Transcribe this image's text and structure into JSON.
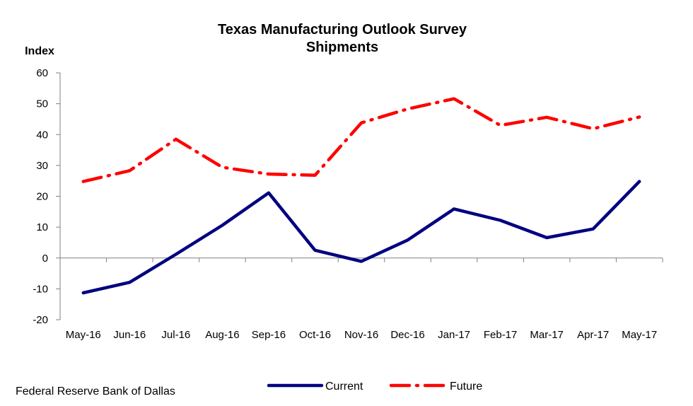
{
  "chart_data": {
    "type": "line",
    "title": "Texas Manufacturing Outlook Survey",
    "subtitle": "Shipments",
    "ylabel": "Index",
    "xlabel": "",
    "categories": [
      "May-16",
      "Jun-16",
      "Jul-16",
      "Aug-16",
      "Sep-16",
      "Oct-16",
      "Nov-16",
      "Dec-16",
      "Jan-17",
      "Feb-17",
      "Mar-17",
      "Apr-17",
      "May-17"
    ],
    "ylim": [
      -20,
      60
    ],
    "yticks": [
      -20,
      -10,
      0,
      10,
      20,
      30,
      40,
      50,
      60
    ],
    "ytick_labels": [
      "-20",
      "-10",
      "0",
      "10",
      "20",
      "30",
      "40",
      "50",
      "60"
    ],
    "grid": false,
    "legend_position": "bottom",
    "series": [
      {
        "name": "Current",
        "color": "#000080",
        "style": "solid",
        "values": [
          -11.3,
          -7.9,
          1.2,
          10.6,
          21.1,
          2.5,
          -1.1,
          5.8,
          15.9,
          12.2,
          6.6,
          9.4,
          24.8
        ]
      },
      {
        "name": "Future",
        "color": "#ff0000",
        "style": "dash-dot",
        "values": [
          24.8,
          28.3,
          38.5,
          29.4,
          27.2,
          26.8,
          43.8,
          48.3,
          51.6,
          43.0,
          45.6,
          41.9,
          45.7
        ]
      }
    ]
  },
  "footer": {
    "source": "Federal Reserve Bank of Dallas"
  }
}
